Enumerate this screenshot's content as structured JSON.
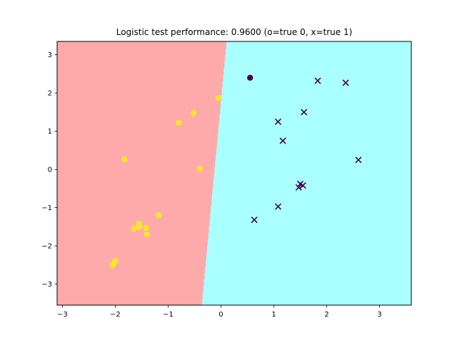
{
  "chart_data": {
    "type": "scatter",
    "title": "Logistic test performance: 0.9600 (o=true 0, x=true 1)",
    "xlabel": "",
    "ylabel": "",
    "xlim": [
      -3.1,
      3.6
    ],
    "ylim": [
      -3.55,
      3.35
    ],
    "xticks": [
      -3,
      -2,
      -1,
      0,
      1,
      2,
      3
    ],
    "yticks": [
      -3,
      -2,
      -1,
      0,
      1,
      2,
      3
    ],
    "grid": false,
    "colors": {
      "region_0": "#ffaaaa",
      "region_1": "#aaffff",
      "class_0_point": "#fde725",
      "class_1_point": "#440154"
    },
    "decision_boundary": {
      "description_free": true,
      "points": [
        [
          -0.37,
          -3.55
        ],
        [
          0.1,
          3.35
        ]
      ]
    },
    "series": [
      {
        "marker": "o",
        "points": [
          {
            "x": -2.05,
            "y": -2.5,
            "predicted_class": 0
          },
          {
            "x": -2.0,
            "y": -2.4,
            "predicted_class": 0
          },
          {
            "x": -1.83,
            "y": 0.27,
            "predicted_class": 0
          },
          {
            "x": -1.65,
            "y": -1.55,
            "predicted_class": 0
          },
          {
            "x": -1.55,
            "y": -1.42,
            "predicted_class": 0
          },
          {
            "x": -1.55,
            "y": -1.5,
            "predicted_class": 0
          },
          {
            "x": -1.42,
            "y": -1.53,
            "predicted_class": 0
          },
          {
            "x": -1.4,
            "y": -1.7,
            "predicted_class": 0
          },
          {
            "x": -1.18,
            "y": -1.2,
            "predicted_class": 0
          },
          {
            "x": -0.8,
            "y": 1.22,
            "predicted_class": 0
          },
          {
            "x": -0.52,
            "y": 1.48,
            "predicted_class": 0
          },
          {
            "x": -0.4,
            "y": 0.02,
            "predicted_class": 0
          },
          {
            "x": -0.05,
            "y": 1.87,
            "predicted_class": 0
          },
          {
            "x": 0.55,
            "y": 2.4,
            "predicted_class": 1
          }
        ]
      },
      {
        "marker": "x",
        "points": [
          {
            "x": 0.63,
            "y": -1.32,
            "predicted_class": 1
          },
          {
            "x": 1.08,
            "y": 1.25,
            "predicted_class": 1
          },
          {
            "x": 1.08,
            "y": -0.97,
            "predicted_class": 1
          },
          {
            "x": 1.17,
            "y": 0.75,
            "predicted_class": 1
          },
          {
            "x": 1.47,
            "y": -0.47,
            "predicted_class": 1
          },
          {
            "x": 1.5,
            "y": -0.38,
            "predicted_class": 1
          },
          {
            "x": 1.55,
            "y": -0.42,
            "predicted_class": 1
          },
          {
            "x": 1.57,
            "y": 1.5,
            "predicted_class": 1
          },
          {
            "x": 1.83,
            "y": 2.32,
            "predicted_class": 1
          },
          {
            "x": 2.36,
            "y": 2.27,
            "predicted_class": 1
          },
          {
            "x": 2.6,
            "y": 0.25,
            "predicted_class": 1
          }
        ]
      }
    ]
  }
}
